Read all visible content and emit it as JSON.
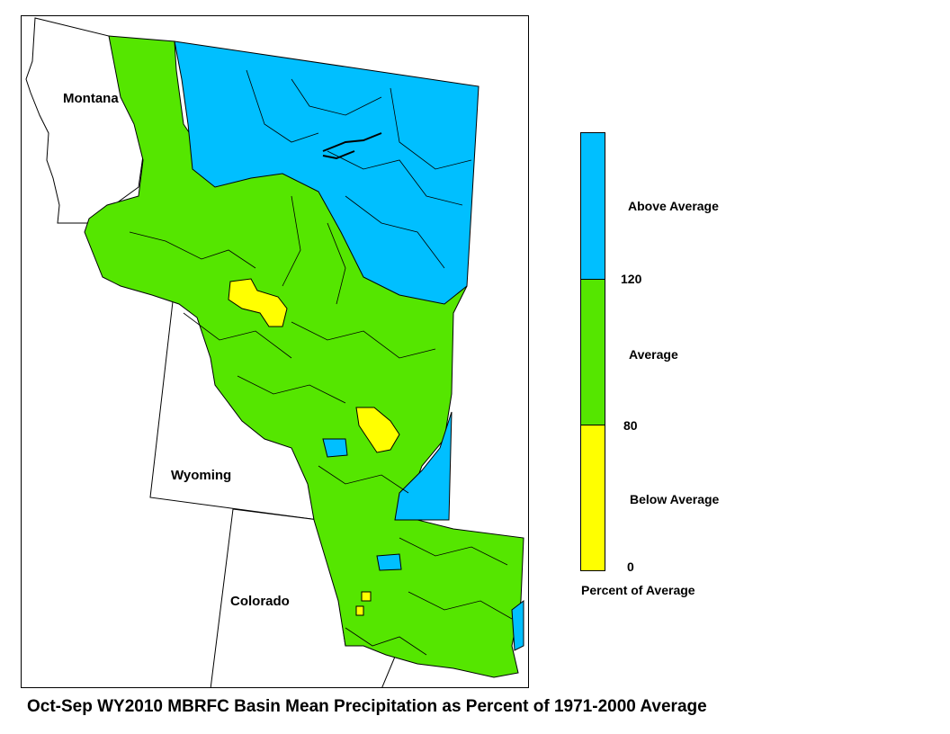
{
  "map": {
    "states": [
      {
        "name": "Montana"
      },
      {
        "name": "Wyoming"
      },
      {
        "name": "Colorado"
      }
    ]
  },
  "legend": {
    "categories": [
      {
        "label": "Above Average",
        "color": "#00bfff",
        "min": 120
      },
      {
        "label": "Average",
        "color": "#55e600",
        "min": 80,
        "max": 120
      },
      {
        "label": "Below Average",
        "color": "#ffff00",
        "min": 0,
        "max": 80
      }
    ],
    "ticks": [
      "120",
      "80",
      "0"
    ],
    "caption": "Percent of Average"
  },
  "title": "Oct-Sep WY2010 MBRFC Basin Mean Precipitation as Percent of 1971-2000 Average"
}
